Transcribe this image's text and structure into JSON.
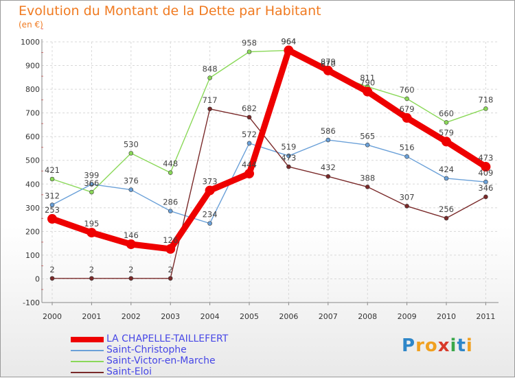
{
  "title": "Evolution du Montant de la Dette par Habitant",
  "subtitle": "(en €)",
  "brand": {
    "letters": [
      {
        "ch": "P",
        "color": "#2e86c8"
      },
      {
        "ch": "r",
        "color": "#f0a020"
      },
      {
        "ch": "o",
        "color": "#f0a020"
      },
      {
        "ch": "x",
        "color": "#d83a2a"
      },
      {
        "ch": "i",
        "color": "#3aa84a"
      },
      {
        "ch": "t",
        "color": "#2e86c8"
      },
      {
        "ch": "i",
        "color": "#f0a020"
      }
    ]
  },
  "chart_data": {
    "type": "line",
    "x": [
      "2000",
      "2001",
      "2002",
      "2003",
      "2004",
      "2005",
      "2006",
      "2007",
      "2008",
      "2009",
      "2010",
      "2011"
    ],
    "ylim": [
      -100,
      1000
    ],
    "yticks": [
      "-100",
      "0",
      "100",
      "200",
      "300",
      "400",
      "500",
      "600",
      "700",
      "800",
      "900",
      "1000"
    ],
    "grid": true,
    "legend_position": "bottom-left",
    "series": [
      {
        "name": "Saint-Victor-en-Marche",
        "color": "#8ad858",
        "values": [
          421,
          366,
          530,
          448,
          848,
          958,
          964,
          870,
          811,
          760,
          660,
          718
        ],
        "labels": [
          "421",
          "366",
          "530",
          "448",
          "848",
          "958",
          "964",
          "870",
          "811",
          "760",
          "660",
          "718"
        ]
      },
      {
        "name": "Saint-Christophe",
        "color": "#6aa0d8",
        "values": [
          312,
          399,
          376,
          286,
          234,
          572,
          519,
          586,
          565,
          516,
          424,
          409
        ],
        "labels": [
          "312",
          "399",
          "376",
          "286",
          "234",
          "572",
          "519",
          "586",
          "565",
          "516",
          "424",
          "409"
        ]
      },
      {
        "name": "Saint-Eloi",
        "color": "#7a2a2a",
        "values": [
          2,
          2,
          2,
          2,
          717,
          682,
          473,
          432,
          388,
          307,
          256,
          346
        ],
        "labels": [
          "2",
          "2",
          "2",
          "2",
          "717",
          "682",
          "473",
          "432",
          "388",
          "307",
          "256",
          "346"
        ]
      },
      {
        "name": "LA CHAPELLE-TAILLEFERT",
        "color": "#ee0000",
        "values": [
          253,
          195,
          146,
          126,
          373,
          444,
          964,
          879,
          790,
          679,
          579,
          473
        ],
        "labels": [
          "253",
          "195",
          "146",
          "126",
          "373",
          "444",
          "964",
          "879",
          "790",
          "679",
          "579",
          "473"
        ]
      }
    ],
    "legend": [
      {
        "name": "LA CHAPELLE-TAILLEFERT",
        "color": "#ee0000"
      },
      {
        "name": "Saint-Christophe",
        "color": "#6aa0d8"
      },
      {
        "name": "Saint-Victor-en-Marche",
        "color": "#8ad858"
      },
      {
        "name": "Saint-Eloi",
        "color": "#7a2a2a"
      }
    ]
  }
}
